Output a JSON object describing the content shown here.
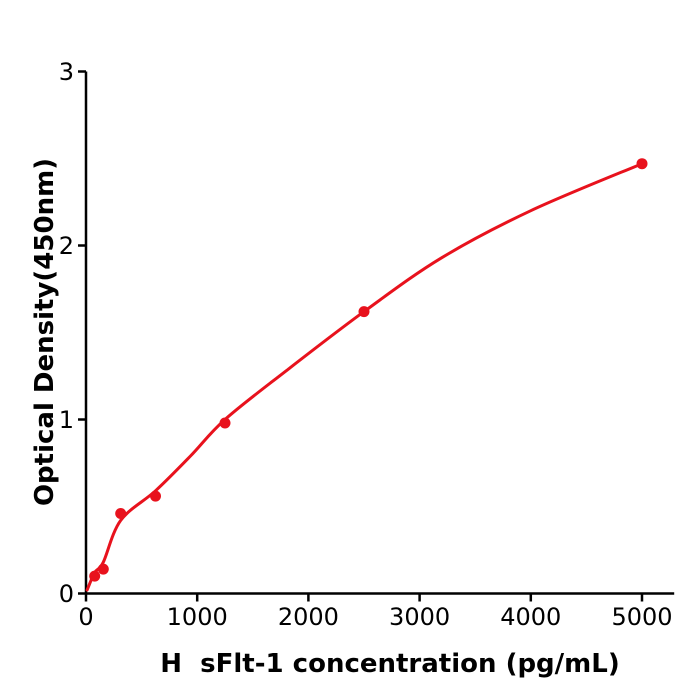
{
  "chart_data": {
    "type": "scatter",
    "title": "",
    "xlabel": "H  sFlt-1 concentration (pg/mL)",
    "ylabel": "Optical Density(450nm)",
    "xlim": [
      0,
      5290
    ],
    "ylim": [
      0,
      3
    ],
    "x_ticks": [
      0,
      1000,
      2000,
      3000,
      4000,
      5000
    ],
    "y_ticks": [
      0,
      1,
      2,
      3
    ],
    "grid": false,
    "legend": "none",
    "point_color": "#e8121d",
    "curve_color": "#e8121d",
    "axis_color": "#000000",
    "points": [
      {
        "x": 78,
        "y": 0.1
      },
      {
        "x": 156,
        "y": 0.14
      },
      {
        "x": 312,
        "y": 0.46
      },
      {
        "x": 625,
        "y": 0.56
      },
      {
        "x": 1250,
        "y": 0.98
      },
      {
        "x": 2500,
        "y": 1.62
      },
      {
        "x": 5000,
        "y": 2.47
      }
    ],
    "fit_curve": [
      [
        10,
        0.02
      ],
      [
        78,
        0.12
      ],
      [
        156,
        0.18
      ],
      [
        312,
        0.42
      ],
      [
        625,
        0.59
      ],
      [
        940,
        0.79
      ],
      [
        1250,
        1.0
      ],
      [
        1800,
        1.28
      ],
      [
        2500,
        1.62
      ],
      [
        3200,
        1.93
      ],
      [
        4000,
        2.2
      ],
      [
        5000,
        2.47
      ]
    ]
  }
}
